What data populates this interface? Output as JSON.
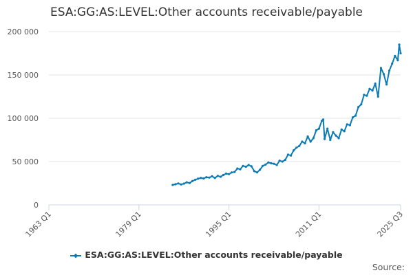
{
  "title": "ESA:GG:AS:LEVEL:Other accounts receivable/payable",
  "legend_label": "ESA:GG:AS:LEVEL:Other accounts receivable/payable",
  "source_label": "Source:",
  "colors": {
    "series": "#0a7ab5",
    "grid": "#e6e6e6",
    "axis": "#ccd6eb"
  },
  "chart_data": {
    "type": "line",
    "title": "ESA:GG:AS:LEVEL:Other accounts receivable/payable",
    "xlabel": "",
    "ylabel": "",
    "x_ticks": [
      "1963 Q1",
      "1979 Q1",
      "1995 Q1",
      "2011 Q1",
      "2025 Q3"
    ],
    "y_ticks": [
      "0",
      "50 000",
      "100 000",
      "150 000",
      "200 000"
    ],
    "ylim": [
      0,
      200000
    ],
    "xlim": [
      "1963 Q1",
      "2025 Q3"
    ],
    "grid": true,
    "legend": "bottom",
    "series": [
      {
        "name": "ESA:GG:AS:LEVEL:Other accounts receivable/payable",
        "points": [
          [
            "1985 Q1",
            23000
          ],
          [
            "1985 Q3",
            23800
          ],
          [
            "1986 Q1",
            24800
          ],
          [
            "1986 Q3",
            23600
          ],
          [
            "1987 Q1",
            24500
          ],
          [
            "1987 Q3",
            26000
          ],
          [
            "1988 Q1",
            25200
          ],
          [
            "1988 Q3",
            27500
          ],
          [
            "1989 Q1",
            29000
          ],
          [
            "1989 Q3",
            30200
          ],
          [
            "1990 Q1",
            31000
          ],
          [
            "1990 Q3",
            30500
          ],
          [
            "1991 Q1",
            32000
          ],
          [
            "1991 Q3",
            31500
          ],
          [
            "1992 Q1",
            33000
          ],
          [
            "1992 Q3",
            31000
          ],
          [
            "1993 Q1",
            33500
          ],
          [
            "1993 Q3",
            32500
          ],
          [
            "1994 Q1",
            34500
          ],
          [
            "1994 Q3",
            36000
          ],
          [
            "1995 Q1",
            35500
          ],
          [
            "1995 Q3",
            37500
          ],
          [
            "1996 Q1",
            38000
          ],
          [
            "1996 Q3",
            42000
          ],
          [
            "1997 Q1",
            41000
          ],
          [
            "1997 Q3",
            45000
          ],
          [
            "1998 Q1",
            44000
          ],
          [
            "1998 Q3",
            46000
          ],
          [
            "1999 Q1",
            44500
          ],
          [
            "1999 Q3",
            39000
          ],
          [
            "2000 Q1",
            37500
          ],
          [
            "2000 Q3",
            40500
          ],
          [
            "2001 Q1",
            45000
          ],
          [
            "2001 Q3",
            46500
          ],
          [
            "2002 Q1",
            49000
          ],
          [
            "2002 Q3",
            48000
          ],
          [
            "2003 Q1",
            47500
          ],
          [
            "2003 Q3",
            46000
          ],
          [
            "2004 Q1",
            51000
          ],
          [
            "2004 Q3",
            50000
          ],
          [
            "2005 Q1",
            52000
          ],
          [
            "2005 Q3",
            58000
          ],
          [
            "2006 Q1",
            57000
          ],
          [
            "2006 Q3",
            63000
          ],
          [
            "2007 Q1",
            66000
          ],
          [
            "2007 Q3",
            68000
          ],
          [
            "2008 Q1",
            73000
          ],
          [
            "2008 Q3",
            71000
          ],
          [
            "2009 Q1",
            79000
          ],
          [
            "2009 Q3",
            73000
          ],
          [
            "2010 Q1",
            77000
          ],
          [
            "2010 Q3",
            86000
          ],
          [
            "2011 Q1",
            88000
          ],
          [
            "2011 Q3",
            97000
          ],
          [
            "2011 Q4",
            98500
          ],
          [
            "2012 Q1",
            76000
          ],
          [
            "2012 Q3",
            88000
          ],
          [
            "2013 Q1",
            75000
          ],
          [
            "2013 Q3",
            84000
          ],
          [
            "2014 Q1",
            80000
          ],
          [
            "2014 Q3",
            77000
          ],
          [
            "2015 Q1",
            87000
          ],
          [
            "2015 Q3",
            85000
          ],
          [
            "2016 Q1",
            93000
          ],
          [
            "2016 Q3",
            92000
          ],
          [
            "2017 Q1",
            101000
          ],
          [
            "2017 Q3",
            103000
          ],
          [
            "2018 Q1",
            113000
          ],
          [
            "2018 Q3",
            116000
          ],
          [
            "2019 Q1",
            127000
          ],
          [
            "2019 Q3",
            126000
          ],
          [
            "2020 Q1",
            134000
          ],
          [
            "2020 Q3",
            132000
          ],
          [
            "2021 Q1",
            140000
          ],
          [
            "2021 Q3",
            125000
          ],
          [
            "2022 Q1",
            158000
          ],
          [
            "2022 Q3",
            151000
          ],
          [
            "2023 Q1",
            139000
          ],
          [
            "2023 Q3",
            155000
          ],
          [
            "2024 Q1",
            163000
          ],
          [
            "2024 Q3",
            172000
          ],
          [
            "2025 Q1",
            167000
          ],
          [
            "2025 Q2",
            185000
          ],
          [
            "2025 Q3",
            175000
          ]
        ]
      }
    ]
  }
}
